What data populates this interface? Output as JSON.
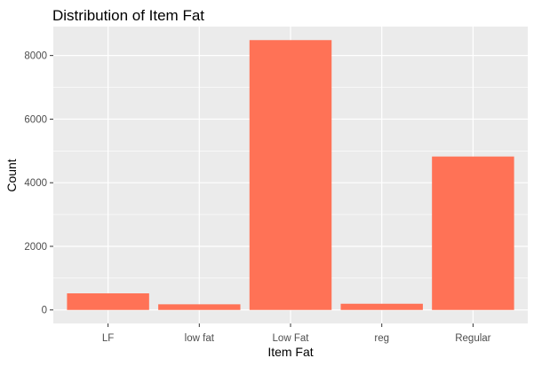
{
  "chart_data": {
    "type": "bar",
    "title": "Distribution of Item Fat",
    "xlabel": "Item Fat",
    "ylabel": "Count",
    "categories": [
      "LF",
      "low fat",
      "Low Fat",
      "reg",
      "Regular"
    ],
    "values": [
      522,
      178,
      8485,
      195,
      4824
    ],
    "yticks": [
      0,
      2000,
      4000,
      6000,
      8000
    ],
    "ylim": [
      -425,
      8910
    ],
    "grid": true,
    "legend": "none",
    "colors": {
      "bar": "#FF7256",
      "panel": "#EBEBEB",
      "gridline": "#FFFFFF"
    }
  }
}
